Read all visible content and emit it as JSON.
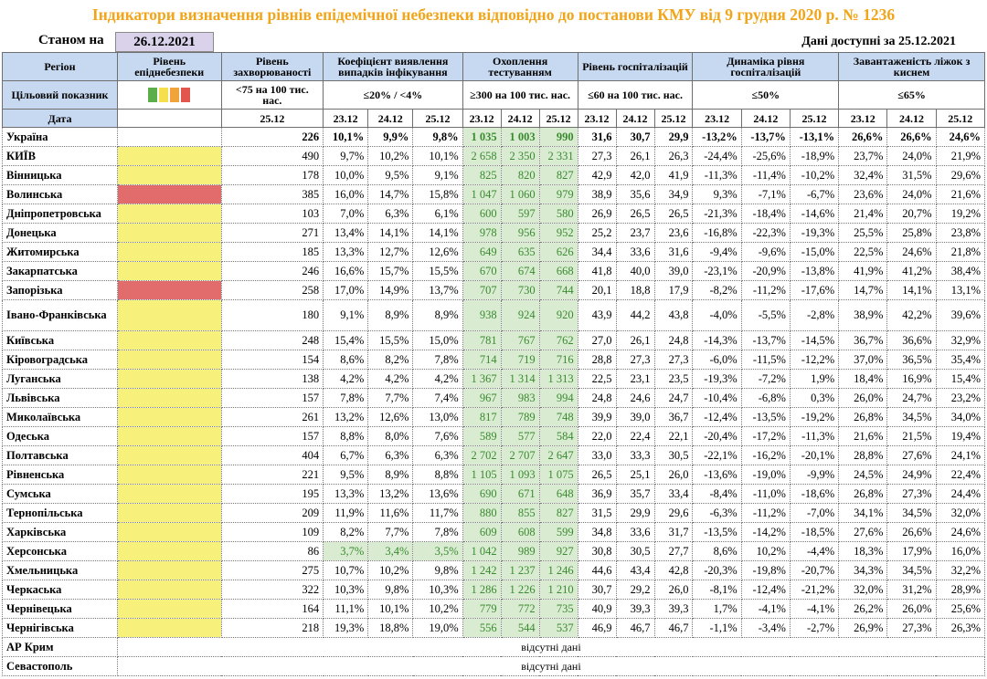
{
  "title": "Індикатори визначення рівнів епідемічної небезпеки відповідно до постанови КМУ від 9 грудня 2020 р. № 1236",
  "as_of_label": "Станом на",
  "as_of_date": "26.12.2021",
  "available_text": "Дані доступні за 25.12.2021",
  "headers": {
    "region": "Регіон",
    "level": "Рівень епіднебезпеки",
    "incidence": "Рівень захворюваності",
    "detection": "Коефіцієнт виявлення випадків інфікування",
    "testing": "Охоплення тестуванням",
    "hospital": "Рівень госпіталізацій",
    "dynamics": "Динаміка рівня госпіталізацій",
    "oxygen": "Завантаженість ліжок з киснем"
  },
  "target": {
    "label": "Цільовий показник",
    "incidence": "<75 на 100 тис. нас.",
    "detection": "≤20% / <4%",
    "testing": "≥300 на 100 тис. нас.",
    "hospital": "≤60 на 100 тис. нас.",
    "dynamics": "≤50%",
    "oxygen": "≤65%",
    "swatch_colors": [
      "#5cae4a",
      "#f5df4d",
      "#f0a33a",
      "#e2564e"
    ]
  },
  "date_row": {
    "label": "Дата",
    "incidence": "25.12",
    "d1": "23.12",
    "d2": "24.12",
    "d3": "25.12"
  },
  "rows": [
    {
      "region": "Україна",
      "level": "",
      "inc": "226",
      "det": [
        "10,1%",
        "9,9%",
        "9,8%"
      ],
      "tst": [
        "1 035",
        "1 003",
        "990"
      ],
      "hos": [
        "31,6",
        "30,7",
        "29,9"
      ],
      "dyn": [
        "-13,2%",
        "-13,7%",
        "-13,1%"
      ],
      "oxy": [
        "26,6%",
        "26,6%",
        "24,6%"
      ]
    },
    {
      "region": "КИЇВ",
      "level": "yellow",
      "inc": "490",
      "det": [
        "9,7%",
        "10,2%",
        "10,1%"
      ],
      "tst": [
        "2 658",
        "2 350",
        "2 331"
      ],
      "hos": [
        "27,3",
        "26,1",
        "26,3"
      ],
      "dyn": [
        "-24,4%",
        "-25,6%",
        "-18,9%"
      ],
      "oxy": [
        "23,7%",
        "24,0%",
        "21,9%"
      ]
    },
    {
      "region": "Вінницька",
      "level": "yellow",
      "inc": "178",
      "det": [
        "10,0%",
        "9,5%",
        "9,1%"
      ],
      "tst": [
        "825",
        "820",
        "827"
      ],
      "hos": [
        "42,9",
        "42,0",
        "41,9"
      ],
      "dyn": [
        "-11,3%",
        "-11,4%",
        "-10,2%"
      ],
      "oxy": [
        "32,4%",
        "31,5%",
        "29,6%"
      ]
    },
    {
      "region": "Волинська",
      "level": "red",
      "inc": "385",
      "det": [
        "16,0%",
        "14,7%",
        "15,8%"
      ],
      "tst": [
        "1 047",
        "1 060",
        "979"
      ],
      "hos": [
        "38,9",
        "35,6",
        "34,9"
      ],
      "dyn": [
        "9,3%",
        "-7,1%",
        "-6,7%"
      ],
      "oxy": [
        "23,6%",
        "24,0%",
        "21,6%"
      ]
    },
    {
      "region": "Дніпропетровська",
      "level": "yellow",
      "inc": "103",
      "det": [
        "7,0%",
        "6,3%",
        "6,1%"
      ],
      "tst": [
        "600",
        "597",
        "580"
      ],
      "hos": [
        "26,9",
        "26,5",
        "26,5"
      ],
      "dyn": [
        "-21,3%",
        "-18,4%",
        "-14,6%"
      ],
      "oxy": [
        "21,4%",
        "20,7%",
        "19,2%"
      ]
    },
    {
      "region": "Донецька",
      "level": "yellow",
      "inc": "271",
      "det": [
        "13,4%",
        "14,1%",
        "14,1%"
      ],
      "tst": [
        "978",
        "956",
        "952"
      ],
      "hos": [
        "25,2",
        "23,7",
        "23,6"
      ],
      "dyn": [
        "-16,8%",
        "-22,3%",
        "-19,3%"
      ],
      "oxy": [
        "25,5%",
        "25,8%",
        "23,8%"
      ]
    },
    {
      "region": "Житомирська",
      "level": "yellow",
      "inc": "185",
      "det": [
        "13,3%",
        "12,7%",
        "12,6%"
      ],
      "tst": [
        "649",
        "635",
        "626"
      ],
      "hos": [
        "34,4",
        "33,6",
        "31,6"
      ],
      "dyn": [
        "-9,4%",
        "-9,6%",
        "-15,0%"
      ],
      "oxy": [
        "22,5%",
        "24,6%",
        "21,8%"
      ]
    },
    {
      "region": "Закарпатська",
      "level": "yellow",
      "inc": "246",
      "det": [
        "16,6%",
        "15,7%",
        "15,5%"
      ],
      "tst": [
        "670",
        "674",
        "668"
      ],
      "hos": [
        "41,8",
        "40,0",
        "39,0"
      ],
      "dyn": [
        "-23,1%",
        "-20,9%",
        "-13,8%"
      ],
      "oxy": [
        "41,9%",
        "41,2%",
        "38,4%"
      ]
    },
    {
      "region": "Запорізька",
      "level": "red",
      "inc": "258",
      "det": [
        "17,0%",
        "14,9%",
        "13,7%"
      ],
      "tst": [
        "707",
        "730",
        "744"
      ],
      "hos": [
        "20,1",
        "18,8",
        "17,9"
      ],
      "dyn": [
        "-8,2%",
        "-11,2%",
        "-17,6%"
      ],
      "oxy": [
        "14,7%",
        "14,1%",
        "13,1%"
      ]
    },
    {
      "region": "Івано-Франківська",
      "level": "yellow",
      "inc": "180",
      "det": [
        "9,1%",
        "8,9%",
        "8,9%"
      ],
      "tst": [
        "938",
        "924",
        "920"
      ],
      "hos": [
        "43,9",
        "44,2",
        "43,8"
      ],
      "dyn": [
        "-4,0%",
        "-5,5%",
        "-2,8%"
      ],
      "oxy": [
        "38,9%",
        "42,2%",
        "39,6%"
      ]
    },
    {
      "region": "Київська",
      "level": "yellow",
      "inc": "248",
      "det": [
        "15,4%",
        "15,5%",
        "15,0%"
      ],
      "tst": [
        "781",
        "767",
        "762"
      ],
      "hos": [
        "27,0",
        "26,1",
        "24,8"
      ],
      "dyn": [
        "-14,3%",
        "-13,7%",
        "-14,5%"
      ],
      "oxy": [
        "36,7%",
        "36,6%",
        "32,9%"
      ]
    },
    {
      "region": "Кіровоградська",
      "level": "yellow",
      "inc": "154",
      "det": [
        "8,6%",
        "8,2%",
        "7,8%"
      ],
      "tst": [
        "714",
        "719",
        "716"
      ],
      "hos": [
        "28,8",
        "27,3",
        "27,3"
      ],
      "dyn": [
        "-6,0%",
        "-11,5%",
        "-12,2%"
      ],
      "oxy": [
        "37,0%",
        "36,5%",
        "35,4%"
      ]
    },
    {
      "region": "Луганська",
      "level": "yellow",
      "inc": "138",
      "det": [
        "4,2%",
        "4,2%",
        "4,2%"
      ],
      "tst": [
        "1 367",
        "1 314",
        "1 313"
      ],
      "hos": [
        "22,5",
        "23,1",
        "23,5"
      ],
      "dyn": [
        "-19,3%",
        "-7,2%",
        "1,9%"
      ],
      "oxy": [
        "18,4%",
        "16,9%",
        "15,4%"
      ]
    },
    {
      "region": "Львівська",
      "level": "yellow",
      "inc": "157",
      "det": [
        "7,8%",
        "7,7%",
        "7,4%"
      ],
      "tst": [
        "967",
        "983",
        "994"
      ],
      "hos": [
        "24,8",
        "24,6",
        "24,7"
      ],
      "dyn": [
        "-10,4%",
        "-6,8%",
        "0,3%"
      ],
      "oxy": [
        "26,0%",
        "24,7%",
        "23,2%"
      ]
    },
    {
      "region": "Миколаївська",
      "level": "yellow",
      "inc": "261",
      "det": [
        "13,2%",
        "12,6%",
        "13,0%"
      ],
      "tst": [
        "817",
        "789",
        "748"
      ],
      "hos": [
        "39,9",
        "39,0",
        "36,7"
      ],
      "dyn": [
        "-12,4%",
        "-13,5%",
        "-19,2%"
      ],
      "oxy": [
        "26,8%",
        "34,5%",
        "34,0%"
      ]
    },
    {
      "region": "Одеська",
      "level": "yellow",
      "inc": "157",
      "det": [
        "8,8%",
        "8,0%",
        "7,6%"
      ],
      "tst": [
        "589",
        "577",
        "584"
      ],
      "hos": [
        "22,0",
        "22,4",
        "22,1"
      ],
      "dyn": [
        "-20,4%",
        "-17,2%",
        "-11,3%"
      ],
      "oxy": [
        "21,6%",
        "21,5%",
        "19,4%"
      ]
    },
    {
      "region": "Полтавська",
      "level": "yellow",
      "inc": "404",
      "det": [
        "6,7%",
        "6,3%",
        "6,3%"
      ],
      "tst": [
        "2 702",
        "2 707",
        "2 647"
      ],
      "hos": [
        "33,0",
        "33,3",
        "30,5"
      ],
      "dyn": [
        "-22,1%",
        "-16,2%",
        "-20,1%"
      ],
      "oxy": [
        "28,8%",
        "27,6%",
        "24,1%"
      ]
    },
    {
      "region": "Рівненська",
      "level": "yellow",
      "inc": "221",
      "det": [
        "9,5%",
        "8,9%",
        "8,8%"
      ],
      "tst": [
        "1 105",
        "1 093",
        "1 075"
      ],
      "hos": [
        "26,5",
        "25,1",
        "26,0"
      ],
      "dyn": [
        "-13,6%",
        "-19,0%",
        "-9,9%"
      ],
      "oxy": [
        "24,5%",
        "24,9%",
        "22,4%"
      ]
    },
    {
      "region": "Сумська",
      "level": "yellow",
      "inc": "195",
      "det": [
        "13,3%",
        "13,2%",
        "13,6%"
      ],
      "tst": [
        "690",
        "671",
        "648"
      ],
      "hos": [
        "36,9",
        "35,7",
        "33,4"
      ],
      "dyn": [
        "-8,4%",
        "-11,0%",
        "-18,6%"
      ],
      "oxy": [
        "26,8%",
        "27,3%",
        "24,4%"
      ]
    },
    {
      "region": "Тернопільська",
      "level": "yellow",
      "inc": "209",
      "det": [
        "11,9%",
        "11,6%",
        "11,7%"
      ],
      "tst": [
        "880",
        "855",
        "827"
      ],
      "hos": [
        "31,5",
        "29,9",
        "29,6"
      ],
      "dyn": [
        "-6,3%",
        "-11,2%",
        "-7,0%"
      ],
      "oxy": [
        "34,1%",
        "34,5%",
        "32,0%"
      ]
    },
    {
      "region": "Харківська",
      "level": "yellow",
      "inc": "109",
      "det": [
        "8,2%",
        "7,7%",
        "7,8%"
      ],
      "tst": [
        "609",
        "608",
        "599"
      ],
      "hos": [
        "34,8",
        "33,6",
        "31,7"
      ],
      "dyn": [
        "-13,5%",
        "-14,2%",
        "-18,5%"
      ],
      "oxy": [
        "27,6%",
        "26,6%",
        "24,6%"
      ]
    },
    {
      "region": "Херсонська",
      "level": "yellow",
      "inc": "86",
      "det": [
        "3,7%",
        "3,4%",
        "3,5%"
      ],
      "detGreen": true,
      "tst": [
        "1 042",
        "989",
        "927"
      ],
      "hos": [
        "30,8",
        "30,5",
        "27,7"
      ],
      "dyn": [
        "8,6%",
        "10,2%",
        "-4,4%"
      ],
      "oxy": [
        "18,3%",
        "17,9%",
        "16,0%"
      ]
    },
    {
      "region": "Хмельницька",
      "level": "yellow",
      "inc": "275",
      "det": [
        "10,7%",
        "10,2%",
        "9,8%"
      ],
      "tst": [
        "1 242",
        "1 237",
        "1 246"
      ],
      "hos": [
        "44,6",
        "43,4",
        "42,8"
      ],
      "dyn": [
        "-20,3%",
        "-19,8%",
        "-20,7%"
      ],
      "oxy": [
        "34,3%",
        "34,5%",
        "32,2%"
      ]
    },
    {
      "region": "Черкаська",
      "level": "yellow",
      "inc": "322",
      "det": [
        "10,3%",
        "9,8%",
        "10,3%"
      ],
      "tst": [
        "1 286",
        "1 226",
        "1 210"
      ],
      "hos": [
        "30,7",
        "29,2",
        "26,0"
      ],
      "dyn": [
        "-8,1%",
        "-12,4%",
        "-21,2%"
      ],
      "oxy": [
        "32,0%",
        "31,2%",
        "28,9%"
      ]
    },
    {
      "region": "Чернівецька",
      "level": "yellow",
      "inc": "164",
      "det": [
        "11,1%",
        "10,1%",
        "10,2%"
      ],
      "tst": [
        "779",
        "772",
        "735"
      ],
      "hos": [
        "40,9",
        "39,3",
        "39,3"
      ],
      "dyn": [
        "1,7%",
        "-4,1%",
        "-4,1%"
      ],
      "oxy": [
        "26,2%",
        "26,0%",
        "25,6%"
      ]
    },
    {
      "region": "Чернігівська",
      "level": "yellow",
      "inc": "218",
      "det": [
        "19,3%",
        "18,8%",
        "19,0%"
      ],
      "tst": [
        "556",
        "544",
        "537"
      ],
      "hos": [
        "46,9",
        "46,7",
        "46,7"
      ],
      "dyn": [
        "-1,1%",
        "-3,4%",
        "-2,7%"
      ],
      "oxy": [
        "26,9%",
        "27,3%",
        "26,3%"
      ]
    }
  ],
  "na_rows": [
    {
      "region": "АР Крим",
      "text": "відсутні дані"
    },
    {
      "region": "Севастополь",
      "text": "відсутні дані"
    }
  ]
}
